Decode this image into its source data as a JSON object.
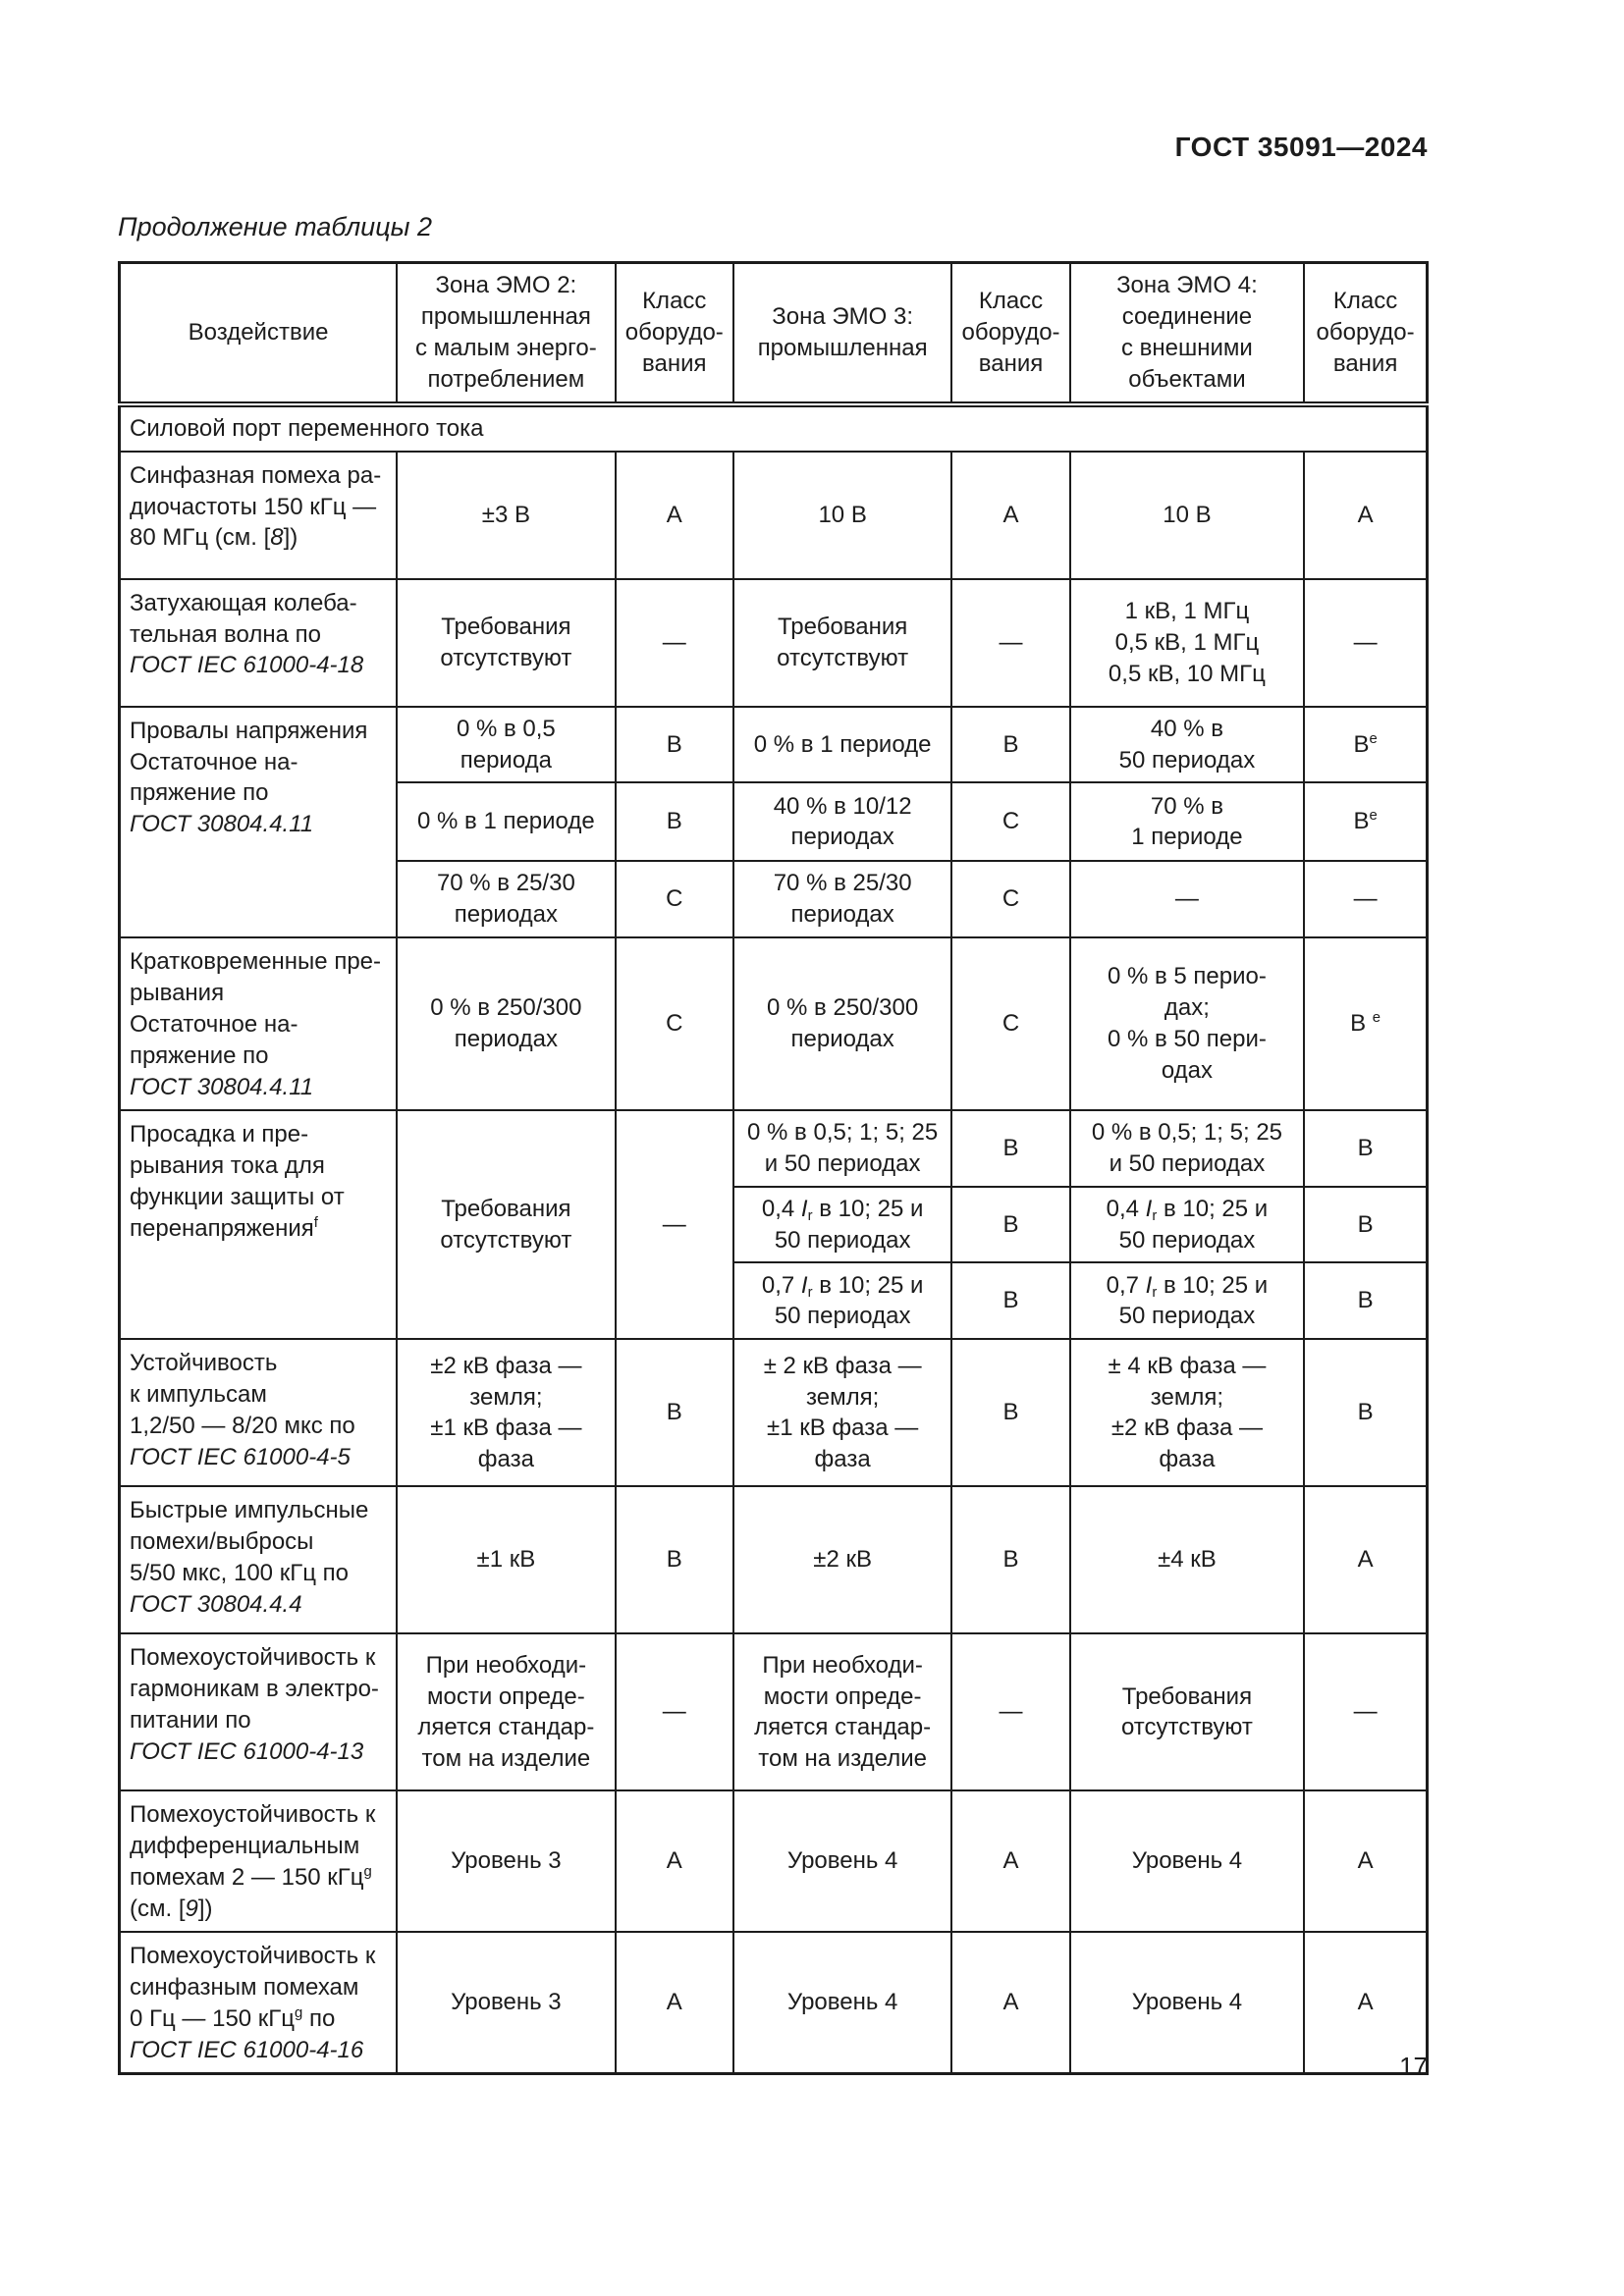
{
  "page": {
    "doc_code": "ГОСТ 35091—2024",
    "table_caption": "Продолжение таблицы 2",
    "page_number": "17"
  },
  "table": {
    "header": [
      "Воздействие",
      "Зона ЭМО 2:\nпромышленная\nс малым энерго-\nпотреблением",
      "Класс\nоборудо-\nвания",
      "Зона ЭМО 3:\nпромышленная",
      "Класс\nоборудо-\nвания",
      "Зона ЭМО 4:\nсоединение\nс внешними\nобъектами",
      "Класс\nоборудо-\nвания"
    ],
    "section_row": "Силовой порт переменного тока",
    "rows": {
      "sinfaznaya": {
        "impact": [
          {
            "t": "Синфазная помеха ра-\nдиочастоты 150 кГц —\n80 МГц (см. ["
          },
          {
            "t": "8",
            "s": "i"
          },
          {
            "t": "])"
          }
        ],
        "z2": "±3 В",
        "c2": "А",
        "z3": "10 В",
        "c3": "А",
        "z4": "10 В",
        "c4": "А"
      },
      "zatuhayushchaya": {
        "impact": [
          {
            "t": "Затухающая колеба-\nтельная волна по\n"
          },
          {
            "t": "ГОСТ IEC 61000-4-18",
            "s": "i"
          }
        ],
        "z2": "Требования\nотсутствуют",
        "c2": "—",
        "z3": "Требования\nотсутствуют",
        "c3": "—",
        "z4": "1 кВ, 1 МГц\n0,5 кВ, 1 МГц\n0,5 кВ, 10 МГц",
        "c4": "—"
      },
      "provaly": {
        "impact": [
          {
            "t": "Провалы напряжения\nОстаточное на-\nпряжение по\n"
          },
          {
            "t": "ГОСТ 30804.4.11",
            "s": "i"
          }
        ],
        "sub": [
          {
            "z2": "0 % в 0,5\nпериода",
            "c2": "В",
            "z3": "0 % в 1 периоде",
            "c3": "В",
            "z4": "40 % в\n50 периодах",
            "c4": [
              {
                "t": "В"
              },
              {
                "t": "e",
                "s": "sup"
              }
            ]
          },
          {
            "z2": "0 % в 1 периоде",
            "c2": "В",
            "z3": "40 % в 10/12\nпериодах",
            "c3": "С",
            "z4": "70 % в\n1 периоде",
            "c4": [
              {
                "t": "В"
              },
              {
                "t": "e",
                "s": "sup"
              }
            ]
          },
          {
            "z2": "70 % в 25/30\nпериодах",
            "c2": "С",
            "z3": "70 % в 25/30\nпериодах",
            "c3": "С",
            "z4": "—",
            "c4": "—"
          }
        ]
      },
      "kratkovremennye": {
        "impact": [
          {
            "t": "Кратковременные пре-\nрывания\nОстаточное на-\nпряжение по\n"
          },
          {
            "t": "ГОСТ 30804.4.11",
            "s": "i"
          }
        ],
        "z2": "0 % в 250/300\nпериодах",
        "c2": "С",
        "z3": "0 % в 250/300\nпериодах",
        "c3": "С",
        "z4": "0 % в 5 перио-\nдах;\n0 % в 50 пери-\nодах",
        "c4": [
          {
            "t": "В "
          },
          {
            "t": "e",
            "s": "sup"
          }
        ]
      },
      "prosadka": {
        "impact": [
          {
            "t": "Просадка и пре-\nрывания тока для\nфункции защиты от\nперенапряжения"
          },
          {
            "t": "f",
            "s": "sup"
          }
        ],
        "z2": "Требования\nотсутствуют",
        "c2": "—",
        "sub": [
          {
            "z3": "0 % в 0,5; 1; 5; 25\nи 50 периодах",
            "c3": "В",
            "z4": "0 % в 0,5; 1; 5; 25\nи 50 периодах",
            "c4": "В"
          },
          {
            "z3": [
              {
                "t": "0,4 "
              },
              {
                "t": "I",
                "s": "i"
              },
              {
                "t": "r",
                "s": "sub"
              },
              {
                "t": " в 10; 25 и\n50 периодах"
              }
            ],
            "c3": "В",
            "z4": [
              {
                "t": "0,4 "
              },
              {
                "t": "I",
                "s": "i"
              },
              {
                "t": "r",
                "s": "sub"
              },
              {
                "t": " в 10; 25 и\n50 периодах"
              }
            ],
            "c4": "В"
          },
          {
            "z3": [
              {
                "t": "0,7 "
              },
              {
                "t": "I",
                "s": "i"
              },
              {
                "t": "r",
                "s": "sub"
              },
              {
                "t": " в 10; 25 и\n50 периодах"
              }
            ],
            "c3": "В",
            "z4": [
              {
                "t": "0,7 "
              },
              {
                "t": "I",
                "s": "i"
              },
              {
                "t": "r",
                "s": "sub"
              },
              {
                "t": " в 10; 25 и\n50 периодах"
              }
            ],
            "c4": "В"
          }
        ]
      },
      "ustoychivost": {
        "impact": [
          {
            "t": "Устойчивость\nк импульсам\n1,2/50 — 8/20 мкс по\n"
          },
          {
            "t": "ГОСТ IEC 61000-4-5",
            "s": "i"
          }
        ],
        "z2": "±2 кВ фаза —\nземля;\n±1 кВ фаза —\nфаза",
        "c2": "В",
        "z3": "± 2 кВ фаза —\nземля;\n±1 кВ фаза —\nфаза",
        "c3": "В",
        "z4": "± 4 кВ фаза —\nземля;\n±2 кВ фаза —\nфаза",
        "c4": "В"
      },
      "bystrye": {
        "impact": [
          {
            "t": "Быстрые импульсные\nпомехи/выбросы\n5/50 мкс, 100 кГц по\n"
          },
          {
            "t": "ГОСТ 30804.4.4",
            "s": "i"
          }
        ],
        "z2": "±1 кВ",
        "c2": "В",
        "z3": "±2 кВ",
        "c3": "В",
        "z4": "±4 кВ",
        "c4": "А"
      },
      "garmoniki": {
        "impact": [
          {
            "t": "Помехоустойчивость к\nгармоникам в электро-\nпитании по\n"
          },
          {
            "t": "ГОСТ IEC 61000-4-13",
            "s": "i"
          }
        ],
        "z2": "При необходи-\nмости опреде-\nляется стандар-\nтом на изделие",
        "c2": "—",
        "z3": "При необходи-\nмости опреде-\nляется стандар-\nтом на изделие",
        "c3": "—",
        "z4": "Требования\nотсутствуют",
        "c4": "—"
      },
      "differencialnye": {
        "impact": [
          {
            "t": "Помехоустойчивость к\nдифференциальным\nпомехам 2 — 150 кГц"
          },
          {
            "t": "g",
            "s": "sup"
          },
          {
            "t": "\n(см. ["
          },
          {
            "t": "9",
            "s": "i"
          },
          {
            "t": "])"
          }
        ],
        "z2": "Уровень 3",
        "c2": "А",
        "z3": "Уровень 4",
        "c3": "А",
        "z4": "Уровень 4",
        "c4": "А"
      },
      "sinfaznye": {
        "impact": [
          {
            "t": "Помехоустойчивость к\nсинфазным помехам\n0 Гц — 150 кГц"
          },
          {
            "t": "g",
            "s": "sup"
          },
          {
            "t": " по\n"
          },
          {
            "t": "ГОСТ IEC 61000-4-16",
            "s": "i"
          }
        ],
        "z2": "Уровень 3",
        "c2": "А",
        "z3": "Уровень 4",
        "c3": "А",
        "z4": "Уровень 4",
        "c4": "А"
      }
    }
  }
}
